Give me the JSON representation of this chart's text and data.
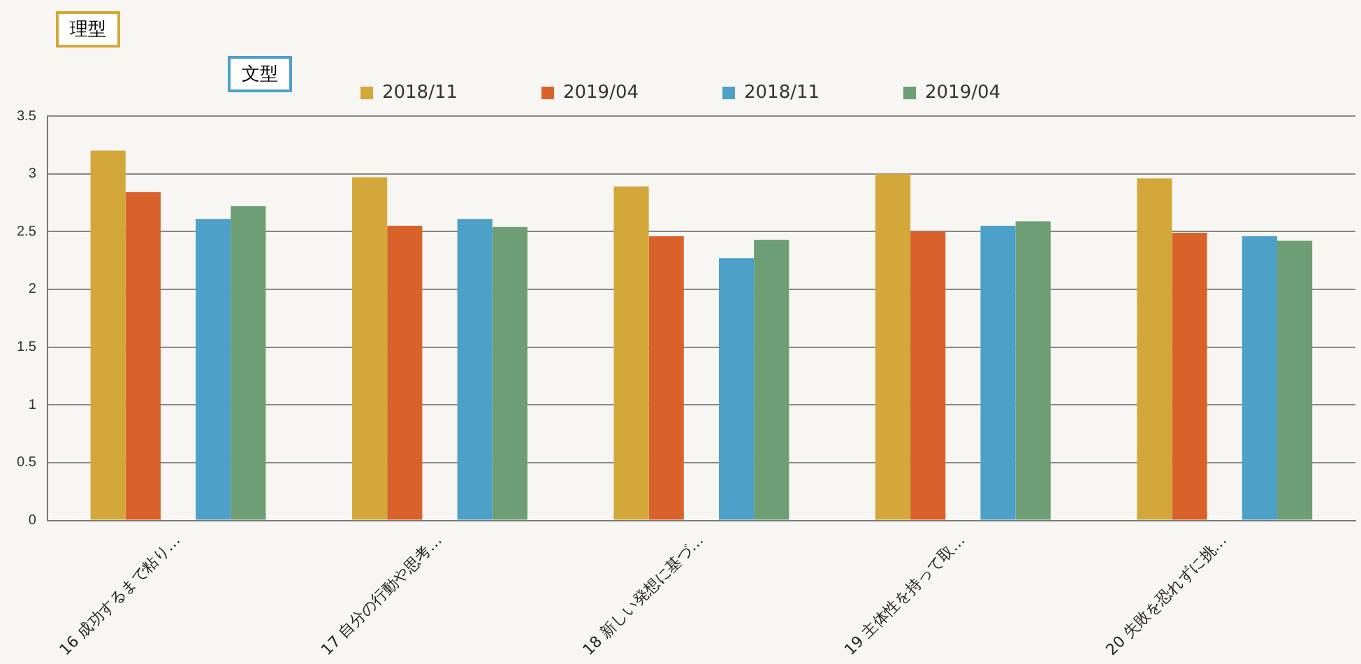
{
  "chart_data": {
    "type": "bar",
    "categories": [
      "16 成功するまで粘り…",
      "17 自分の行動や思考…",
      "18 新しい発想に基づ…",
      "19 主体性を持って取…",
      "20 失敗を恐れずに挑…"
    ],
    "series": [
      {
        "name": "2018/11",
        "color": "#d4a73a",
        "values": [
          3.2,
          2.97,
          2.89,
          3.0,
          2.96
        ]
      },
      {
        "name": "2019/04",
        "color": "#d9622b",
        "values": [
          2.84,
          2.55,
          2.46,
          2.5,
          2.49
        ]
      },
      {
        "name": "2018/11",
        "color": "#4da0c8",
        "values": [
          2.61,
          2.61,
          2.27,
          2.55,
          2.46
        ]
      },
      {
        "name": "2019/04",
        "color": "#6e9e74",
        "values": [
          2.72,
          2.54,
          2.43,
          2.59,
          2.42
        ]
      }
    ],
    "ylim": [
      0,
      3.5
    ],
    "yticks": [
      0,
      0.5,
      1,
      1.5,
      2,
      2.5,
      3,
      3.5
    ],
    "grid": "y",
    "legend": "top",
    "annotations": [
      "理型",
      "文型"
    ]
  }
}
